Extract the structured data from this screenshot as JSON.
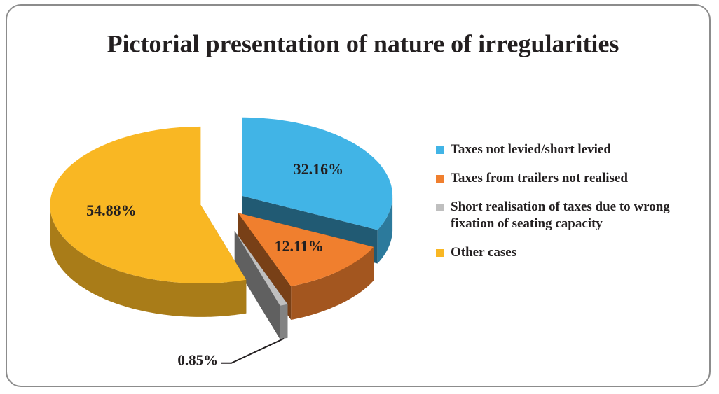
{
  "chart_data": {
    "type": "pie",
    "title": "Pictorial presentation of nature of irregularities",
    "categories": [
      "Taxes not levied/short levied",
      "Taxes from trailers not realised",
      "Short realisation of taxes due to wrong fixation of seating capacity",
      "Other cases"
    ],
    "values": [
      32.16,
      12.11,
      0.85,
      54.88
    ],
    "value_labels": [
      "32.16%",
      "12.11%",
      "0.85%",
      "54.88%"
    ],
    "colors": [
      "#41b4e6",
      "#f07f2e",
      "#bfbfbf",
      "#f9b723"
    ],
    "legend": "right"
  }
}
